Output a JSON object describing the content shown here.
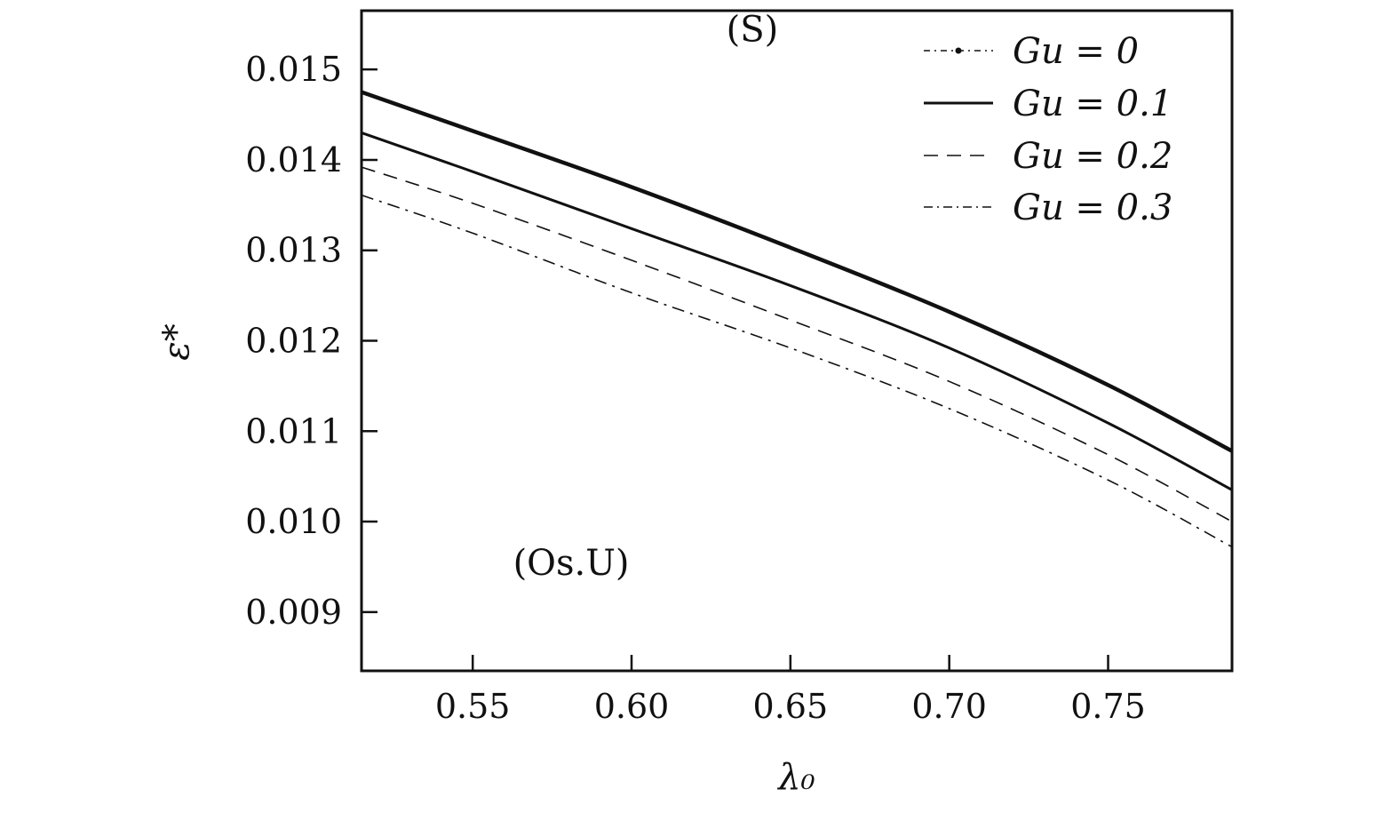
{
  "chart_data": {
    "type": "line",
    "xlabel": "λ₀",
    "ylabel": "ε*",
    "xlim": [
      0.515,
      0.789
    ],
    "ylim": [
      0.00835,
      0.01565
    ],
    "xticks": [
      {
        "value": 0.55,
        "label": "0.55"
      },
      {
        "value": 0.6,
        "label": "0.60"
      },
      {
        "value": 0.65,
        "label": "0.65"
      },
      {
        "value": 0.7,
        "label": "0.70"
      },
      {
        "value": 0.75,
        "label": "0.75"
      }
    ],
    "yticks": [
      {
        "value": 0.009,
        "label": "0.009"
      },
      {
        "value": 0.01,
        "label": "0.010"
      },
      {
        "value": 0.011,
        "label": "0.011"
      },
      {
        "value": 0.012,
        "label": "0.012"
      },
      {
        "value": 0.013,
        "label": "0.013"
      },
      {
        "value": 0.014,
        "label": "0.014"
      },
      {
        "value": 0.015,
        "label": "0.015"
      }
    ],
    "annotations": [
      {
        "text": "(S)",
        "x": 0.638,
        "y": 0.01525
      },
      {
        "text": "(Os.U)",
        "x": 0.581,
        "y": 0.00935
      }
    ],
    "legend": {
      "position": "top-right"
    },
    "series": [
      {
        "name": "Gu = 0",
        "style": "dash-dot-marker",
        "width": 4.5,
        "x": [
          0.515,
          0.55,
          0.6,
          0.65,
          0.7,
          0.75,
          0.789
        ],
        "y": [
          0.01475,
          0.01432,
          0.0137,
          0.01303,
          0.01232,
          0.01151,
          0.01078
        ]
      },
      {
        "name": "Gu = 0.1",
        "style": "solid",
        "width": 3,
        "x": [
          0.515,
          0.55,
          0.6,
          0.65,
          0.7,
          0.75,
          0.789
        ],
        "y": [
          0.0143,
          0.01387,
          0.01324,
          0.01261,
          0.01192,
          0.01109,
          0.01035
        ]
      },
      {
        "name": "Gu = 0.2",
        "style": "dashed",
        "width": 1.6,
        "x": [
          0.515,
          0.55,
          0.6,
          0.65,
          0.7,
          0.75,
          0.789
        ],
        "y": [
          0.01392,
          0.01352,
          0.01289,
          0.01223,
          0.01155,
          0.01074,
          0.01
        ]
      },
      {
        "name": "Gu = 0.3",
        "style": "dashdot",
        "width": 1.6,
        "x": [
          0.515,
          0.55,
          0.6,
          0.65,
          0.7,
          0.75,
          0.789
        ],
        "y": [
          0.01361,
          0.01319,
          0.01253,
          0.01192,
          0.01125,
          0.01046,
          0.00972
        ]
      }
    ]
  },
  "legend_labels": [
    "Gu = 0",
    "Gu = 0.1",
    "Gu = 0.2",
    "Gu = 0.3"
  ]
}
